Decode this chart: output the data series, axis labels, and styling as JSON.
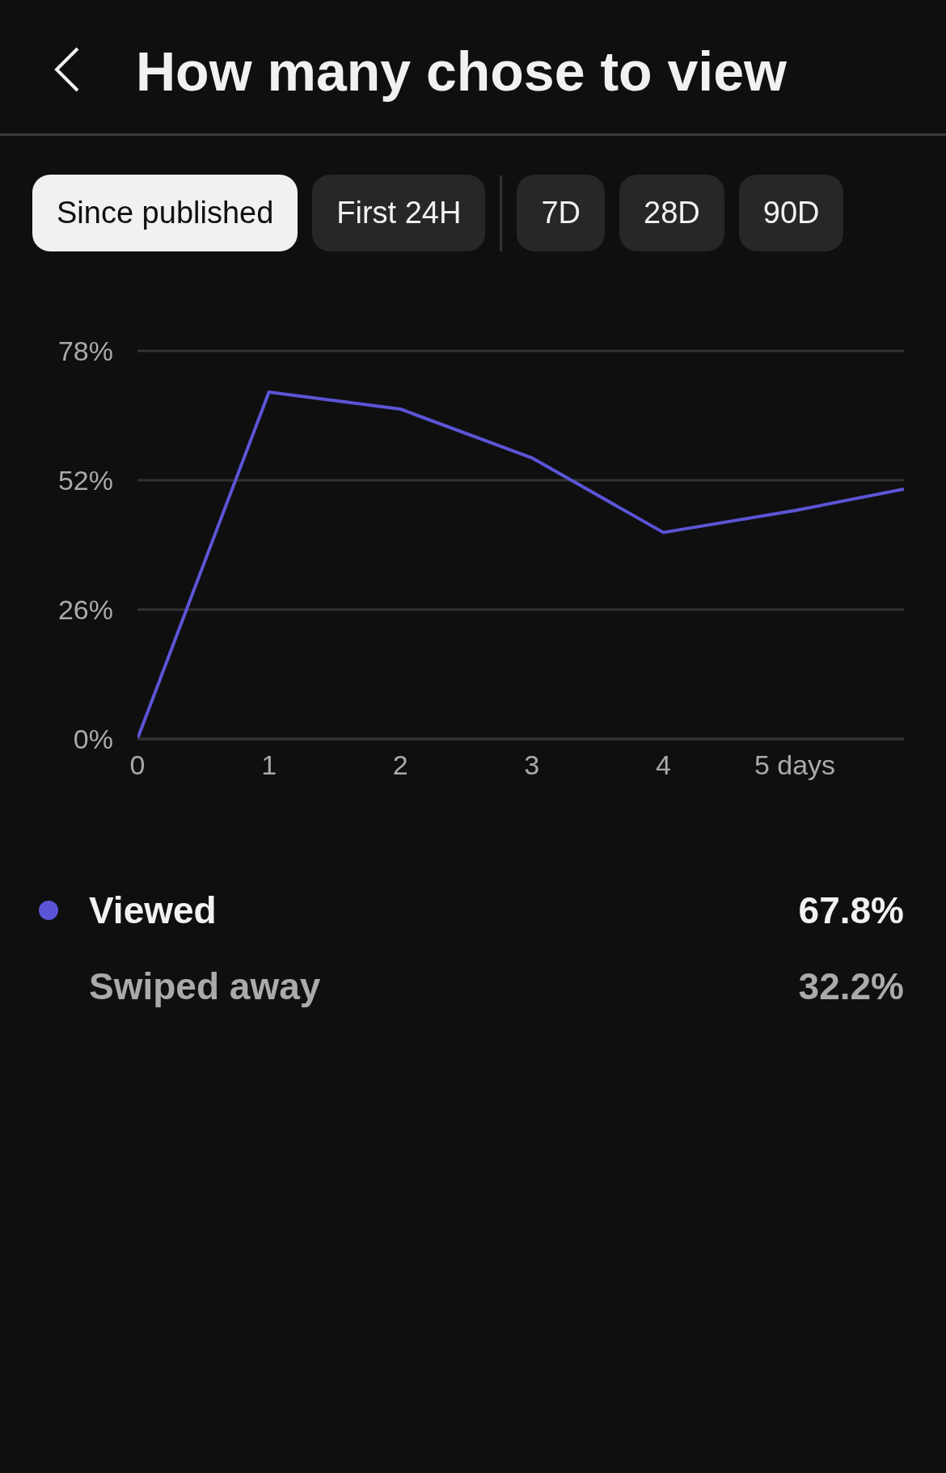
{
  "chart_data": {
    "type": "line",
    "title": "How many chose to view",
    "x": [
      0,
      1,
      2,
      3,
      4,
      5,
      5.83
    ],
    "series": [
      {
        "name": "Viewed",
        "color": "#5b55d6",
        "values": [
          0,
          69.7,
          66.3,
          56.5,
          41.5,
          45.9,
          50.2
        ]
      }
    ],
    "xlim": [
      0,
      5.83
    ],
    "xticks": [
      0,
      1,
      2,
      3,
      4,
      {
        "value": 5,
        "label": "5 days"
      }
    ],
    "ylim": [
      0,
      78
    ],
    "yticks": [
      {
        "value": 0,
        "label": "0%"
      },
      {
        "value": 26,
        "label": "26%"
      },
      {
        "value": 52,
        "label": "52%"
      },
      {
        "value": 78,
        "label": "78%"
      }
    ],
    "grid": "y",
    "legend": "bottom",
    "marker": "none",
    "line_style": "solid",
    "annotations": [
      "Since published",
      "First 24H",
      "7D",
      "28D",
      "90D",
      "67.8%",
      "Swiped away",
      "32.2%"
    ]
  }
}
